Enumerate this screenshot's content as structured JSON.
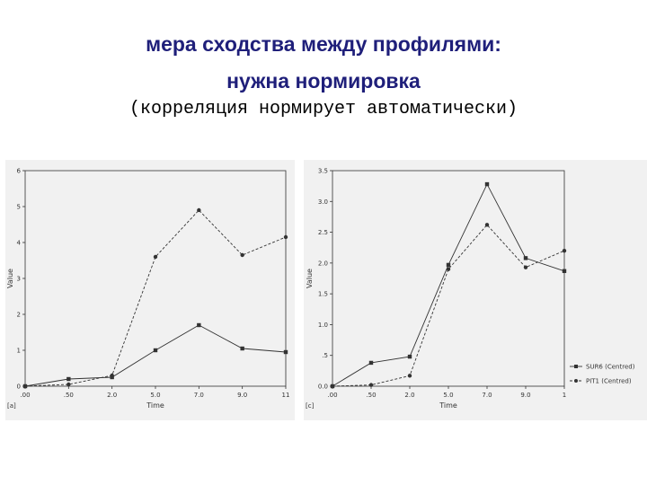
{
  "slide": {
    "title_line1": "мера сходства между профилями:",
    "title_line2": "нужна нормировка",
    "subtitle": "(корреляция нормирует автоматически)"
  },
  "colors": {
    "title": "#1f1f7a",
    "panel_background": "#f1f1f1",
    "line": "#333333"
  },
  "chart_data": [
    {
      "type": "line",
      "panel_label": "[a]",
      "xlabel": "Time",
      "ylabel": "Value",
      "categories": [
        ".00",
        ".50",
        "2.0",
        "5.0",
        "7.0",
        "9.0",
        "11"
      ],
      "ylim": [
        0,
        6
      ],
      "yticks": [
        "0",
        "1",
        "2",
        "3",
        "4",
        "5",
        "6"
      ],
      "grid": false,
      "series": [
        {
          "marker": "circle",
          "line_style": "dashed",
          "values": [
            0.0,
            0.05,
            0.3,
            3.6,
            4.9,
            3.65,
            4.15
          ]
        },
        {
          "marker": "square",
          "line_style": "solid",
          "values": [
            0.0,
            0.2,
            0.25,
            1.0,
            1.7,
            1.05,
            0.95
          ]
        }
      ]
    },
    {
      "type": "line",
      "panel_label": "[c]",
      "xlabel": "Time",
      "ylabel": "Value",
      "categories": [
        ".00",
        ".50",
        "2.0",
        "5.0",
        "7.0",
        "9.0",
        "1"
      ],
      "ylim": [
        0,
        3.5
      ],
      "yticks": [
        "0.0",
        ".5",
        "1.0",
        "1.5",
        "2.0",
        "2.5",
        "3.0",
        "3.5"
      ],
      "grid": false,
      "legend_position": "bottom-right",
      "series": [
        {
          "name": "SUR6 (Centred)",
          "marker": "square",
          "line_style": "solid",
          "values": [
            0.0,
            0.38,
            0.48,
            1.97,
            3.28,
            2.08,
            1.87
          ]
        },
        {
          "name": "PIT1 (Centred)",
          "marker": "circle",
          "line_style": "dashed",
          "values": [
            0.0,
            0.02,
            0.17,
            1.9,
            2.62,
            1.93,
            2.2
          ]
        }
      ]
    }
  ]
}
